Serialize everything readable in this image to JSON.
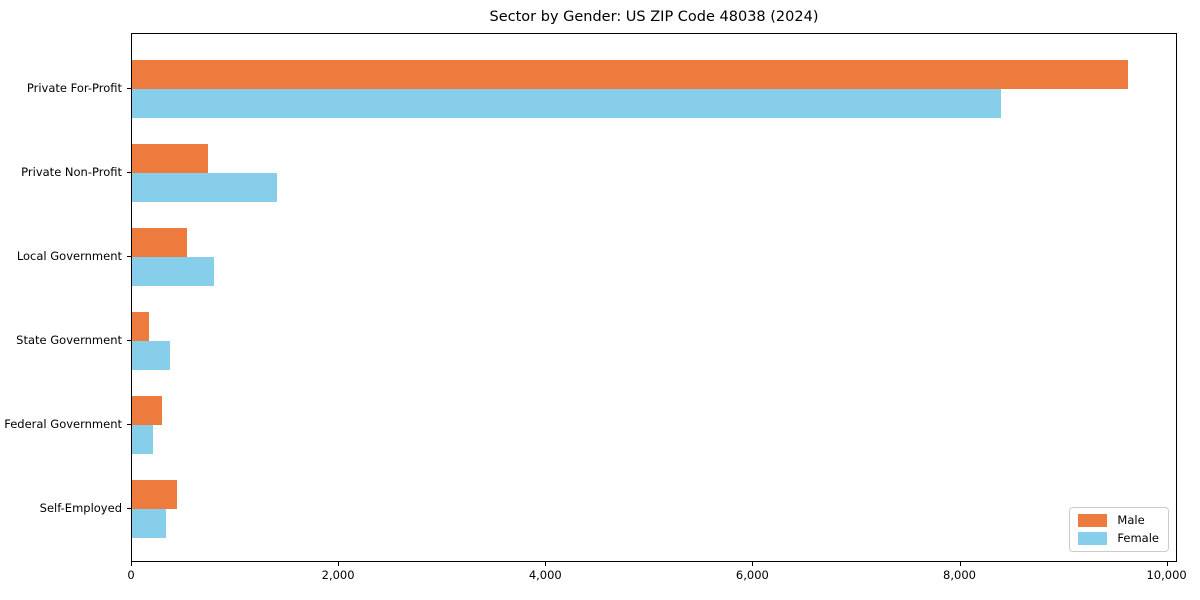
{
  "chart_data": {
    "type": "bar",
    "orientation": "horizontal",
    "title": "Sector by Gender: US ZIP Code 48038 (2024)",
    "categories": [
      "Private For-Profit",
      "Private Non-Profit",
      "Local Government",
      "State Government",
      "Federal Government",
      "Self-Employed"
    ],
    "series": [
      {
        "name": "Male",
        "color": "#ec7b3d",
        "values": [
          9620,
          730,
          530,
          160,
          290,
          435
        ]
      },
      {
        "name": "Female",
        "color": "#87ceeb",
        "values": [
          8390,
          1400,
          790,
          370,
          200,
          325
        ]
      }
    ],
    "xlabel": "",
    "ylabel": "",
    "xlim": [
      0,
      10100
    ],
    "x_ticks": [
      0,
      2000,
      4000,
      6000,
      8000,
      10000
    ],
    "x_tick_labels": [
      "0",
      "2,000",
      "4,000",
      "6,000",
      "8,000",
      "10,000"
    ],
    "grid": false,
    "legend": {
      "position": "lower right",
      "entries": [
        "Male",
        "Female"
      ]
    },
    "colors": {
      "male": "#ec7b3d",
      "female": "#87ceeb",
      "axis": "#000000",
      "legend_border": "#cccccc",
      "background": "#ffffff"
    }
  }
}
